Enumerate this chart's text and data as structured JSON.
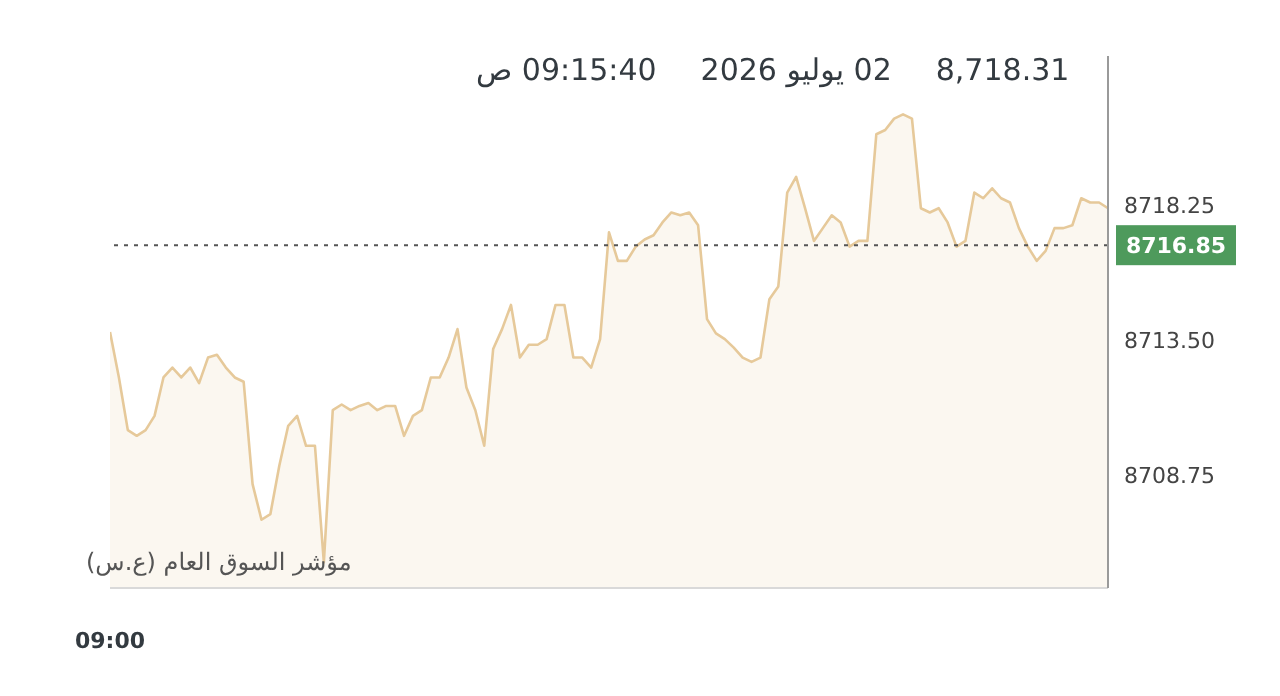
{
  "chart_data": {
    "type": "area",
    "title": "8,718.31",
    "subtitle": "02 يوليو 2026",
    "annotations": [
      "09:15:40 ص"
    ],
    "xlabel": "مؤشر السوق العام (ع.س)",
    "categories": [
      "09:00",
      null,
      null,
      null,
      null,
      null,
      null,
      null,
      null,
      null,
      null,
      null,
      null,
      null,
      null,
      null,
      null,
      null,
      null,
      null,
      null,
      null,
      null,
      null,
      null,
      null,
      null,
      null,
      null,
      null,
      null,
      null,
      null,
      null,
      null,
      null,
      null,
      null,
      null,
      null,
      null,
      null,
      null,
      null,
      null,
      null,
      null,
      null,
      null,
      null,
      null,
      null,
      null,
      null,
      null,
      null,
      null,
      null,
      null,
      null,
      null,
      null,
      null,
      null,
      null,
      null,
      null,
      null,
      null,
      null,
      null,
      null,
      null,
      null,
      null,
      null,
      null,
      null,
      null,
      null,
      null,
      null,
      null,
      null,
      null,
      null,
      null,
      null,
      null,
      null,
      null,
      null,
      null,
      null,
      null,
      null,
      null,
      null,
      null,
      null,
      null,
      null,
      null,
      null,
      null,
      null,
      null,
      null,
      null,
      null,
      null,
      null,
      null
    ],
    "series": [
      {
        "color": "#e6c99a",
        "values": [
          8713.8,
          8712.2,
          8710.35,
          8710.15,
          8710.35,
          8710.85,
          8712.2,
          8712.55,
          8712.2,
          8712.55,
          8712.0,
          8712.9,
          8713.0,
          8712.55,
          8712.2,
          8712.05,
          8708.45,
          8707.2,
          8707.4,
          8709.1,
          8710.5,
          8710.85,
          8709.8,
          8709.8,
          8705.7,
          8711.05,
          8711.25,
          8711.05,
          8711.2,
          8711.3,
          8711.05,
          8711.2,
          8711.2,
          8710.15,
          8710.85,
          8711.05,
          8712.2,
          8712.2,
          8712.9,
          8713.9,
          8711.85,
          8711.05,
          8709.8,
          8713.2,
          8713.9,
          8714.75,
          8712.9,
          8713.35,
          8713.35,
          8713.55,
          8714.75,
          8714.75,
          8712.9,
          8712.9,
          8712.55,
          8713.55,
          8717.3,
          8716.3,
          8716.3,
          8716.8,
          8717.05,
          8717.2,
          8717.65,
          8718.0,
          8717.9,
          8718.0,
          8717.55,
          8714.25,
          8713.75,
          8713.55,
          8713.25,
          8712.9,
          8712.75,
          8712.9,
          8714.95,
          8715.4,
          8718.7,
          8719.25,
          8718.15,
          8717.0,
          8717.45,
          8717.9,
          8717.65,
          8716.8,
          8717.0,
          8717.0,
          8720.75,
          8720.9,
          8721.3,
          8721.45,
          8721.3,
          8718.15,
          8718.0,
          8718.15,
          8717.65,
          8716.8,
          8717.0,
          8718.7,
          8718.5,
          8718.85,
          8718.5,
          8718.35,
          8717.45,
          8716.8,
          8716.3,
          8716.65,
          8717.45,
          8717.45,
          8717.55,
          8718.5,
          8718.35,
          8718.35,
          8718.15
        ]
      }
    ],
    "ylim": [
      8704.8,
      8723.5
    ],
    "yticks": [
      {
        "value": 8708.75,
        "label": "8708.75"
      },
      {
        "value": 8713.5,
        "label": "8713.50"
      },
      {
        "value": 8718.25,
        "label": "8718.25"
      }
    ],
    "ref_lines": [
      {
        "axis": "y",
        "value": 8716.85,
        "label": "8716.85",
        "color": "#555555",
        "line_style": "dotted"
      }
    ]
  }
}
